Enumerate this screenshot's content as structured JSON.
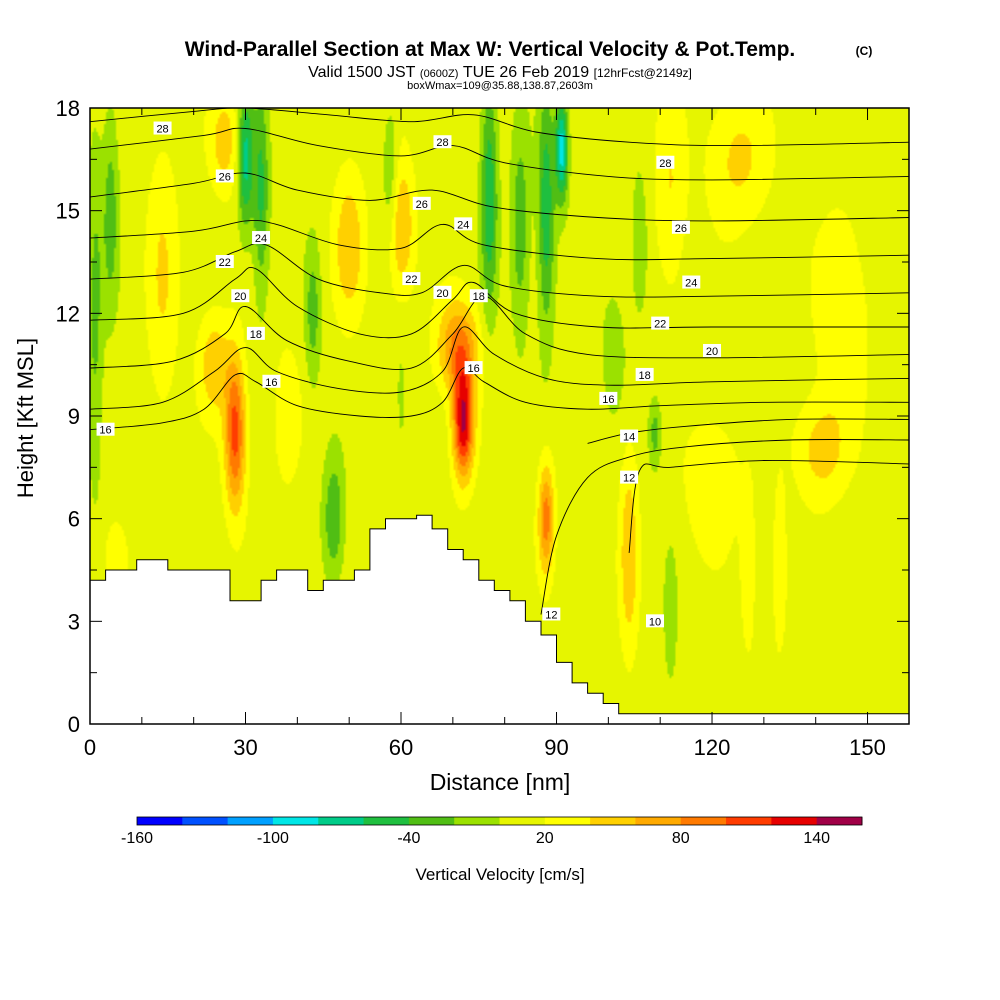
{
  "header": {
    "title": "Wind-Parallel Section at Max W: Vertical Velocity & Pot.Temp.",
    "title_badge": "(C)",
    "subtitle_valid": "Valid 1500 JST",
    "subtitle_zulu": "(0600Z)",
    "subtitle_date": "TUE 26 Feb 2019",
    "subtitle_fcst": "[12hrFcst@2149z]",
    "box_line": "boxWmax=109@35.88,138.87,2603m"
  },
  "chart_data": {
    "type": "heatmap",
    "title": "Wind-Parallel Section at Max W: Vertical Velocity & Pot.Temp.",
    "xlabel": "Distance [nm]",
    "ylabel": "Height [Kft MSL]",
    "xlim": [
      0,
      158
    ],
    "ylim": [
      0,
      18
    ],
    "x_ticks": [
      0,
      30,
      60,
      90,
      120,
      150
    ],
    "x_tick_labels": [
      "0",
      "30",
      "60",
      "90",
      "120",
      "150"
    ],
    "y_ticks": [
      0,
      3,
      6,
      9,
      12,
      15,
      18
    ],
    "y_tick_labels": [
      "0",
      "3",
      "6",
      "9",
      "12",
      "15",
      "18"
    ],
    "grid": false,
    "colorbar": {
      "label": "Vertical Velocity [cm/s]",
      "tick_labels": [
        "-160",
        "-100",
        "-40",
        "20",
        "80",
        "140"
      ],
      "tick_values": [
        -160,
        -100,
        -40,
        20,
        80,
        140
      ],
      "levels": [
        -160,
        -140,
        -120,
        -100,
        -80,
        -60,
        -40,
        -20,
        0,
        20,
        40,
        60,
        80,
        100,
        120,
        140,
        160
      ],
      "colors": [
        "#0000ff",
        "#0050ff",
        "#00a0ff",
        "#00e6e6",
        "#00cc88",
        "#1fbf3f",
        "#50be14",
        "#9be100",
        "#e6f500",
        "#ffff00",
        "#ffd000",
        "#ffaa00",
        "#ff7a00",
        "#ff3c00",
        "#e60000",
        "#a00046"
      ]
    },
    "terrain": [
      [
        0,
        4.2
      ],
      [
        3,
        4.2
      ],
      [
        3,
        4.5
      ],
      [
        9,
        4.5
      ],
      [
        9,
        4.8
      ],
      [
        15,
        4.8
      ],
      [
        15,
        4.5
      ],
      [
        27,
        4.5
      ],
      [
        27,
        3.6
      ],
      [
        33,
        3.6
      ],
      [
        33,
        4.2
      ],
      [
        36,
        4.2
      ],
      [
        36,
        4.5
      ],
      [
        42,
        4.5
      ],
      [
        42,
        3.9
      ],
      [
        45,
        3.9
      ],
      [
        45,
        4.2
      ],
      [
        51,
        4.2
      ],
      [
        51,
        4.5
      ],
      [
        54,
        4.5
      ],
      [
        54,
        5.7
      ],
      [
        57,
        5.7
      ],
      [
        57,
        6.0
      ],
      [
        63,
        6.0
      ],
      [
        63,
        6.1
      ],
      [
        66,
        6.1
      ],
      [
        66,
        5.7
      ],
      [
        69,
        5.7
      ],
      [
        69,
        5.1
      ],
      [
        72,
        5.1
      ],
      [
        72,
        4.8
      ],
      [
        75,
        4.8
      ],
      [
        75,
        4.2
      ],
      [
        78,
        4.2
      ],
      [
        78,
        3.9
      ],
      [
        81,
        3.9
      ],
      [
        81,
        3.6
      ],
      [
        84,
        3.6
      ],
      [
        84,
        3.0
      ],
      [
        87,
        3.0
      ],
      [
        87,
        2.6
      ],
      [
        90,
        2.6
      ],
      [
        90,
        1.8
      ],
      [
        93,
        1.8
      ],
      [
        93,
        1.2
      ],
      [
        96,
        1.2
      ],
      [
        96,
        0.9
      ],
      [
        99,
        0.9
      ],
      [
        99,
        0.6
      ],
      [
        102,
        0.6
      ],
      [
        102,
        0.3
      ],
      [
        158,
        0.3
      ]
    ],
    "w_features": [
      {
        "x": 28,
        "y": 8.5,
        "sx": 2.0,
        "sy": 2.2,
        "w": 100
      },
      {
        "x": 24,
        "y": 10.5,
        "sx": 3.0,
        "sy": 1.5,
        "w": 45
      },
      {
        "x": 72,
        "y": 8.8,
        "sx": 2.0,
        "sy": 1.6,
        "w": 130
      },
      {
        "x": 71,
        "y": 11.0,
        "sx": 4.0,
        "sy": 1.4,
        "w": 75
      },
      {
        "x": 88,
        "y": 6.0,
        "sx": 1.5,
        "sy": 1.6,
        "w": 80
      },
      {
        "x": 104,
        "y": 5.0,
        "sx": 1.8,
        "sy": 3.0,
        "w": 45
      },
      {
        "x": 60,
        "y": 14.5,
        "sx": 2.5,
        "sy": 2.0,
        "w": 55
      },
      {
        "x": 50,
        "y": 14.0,
        "sx": 3.0,
        "sy": 2.2,
        "w": 45
      },
      {
        "x": 26,
        "y": 17.0,
        "sx": 3.0,
        "sy": 1.5,
        "w": 40
      },
      {
        "x": 125,
        "y": 16.5,
        "sx": 6.0,
        "sy": 2.0,
        "w": 35
      },
      {
        "x": 112,
        "y": 15.5,
        "sx": 3.0,
        "sy": 3.0,
        "w": 30
      },
      {
        "x": 145,
        "y": 12.0,
        "sx": 5.0,
        "sy": 3.0,
        "w": 30
      },
      {
        "x": 141,
        "y": 8.0,
        "sx": 5.0,
        "sy": 1.5,
        "w": 40
      },
      {
        "x": 120,
        "y": 7.0,
        "sx": 5.0,
        "sy": 2.0,
        "w": 30
      },
      {
        "x": 14,
        "y": 13.0,
        "sx": 3.0,
        "sy": 4.0,
        "w": 30
      },
      {
        "x": 5,
        "y": 4.8,
        "sx": 2.5,
        "sy": 1.2,
        "w": 28
      },
      {
        "x": 127,
        "y": 4.5,
        "sx": 1.5,
        "sy": 2.5,
        "w": 25
      },
      {
        "x": 133,
        "y": 4.5,
        "sx": 1.5,
        "sy": 2.5,
        "w": 25
      },
      {
        "x": 38,
        "y": 9.0,
        "sx": 2.5,
        "sy": 2.0,
        "w": 25
      },
      {
        "x": 33,
        "y": 15.5,
        "sx": 1.5,
        "sy": 3.0,
        "w": -55
      },
      {
        "x": 30,
        "y": 16.5,
        "sx": 1.5,
        "sy": 2.0,
        "w": -80
      },
      {
        "x": 77,
        "y": 15.5,
        "sx": 1.6,
        "sy": 3.5,
        "w": -65
      },
      {
        "x": 88,
        "y": 15.0,
        "sx": 1.6,
        "sy": 3.5,
        "w": -65
      },
      {
        "x": 91,
        "y": 16.8,
        "sx": 1.2,
        "sy": 1.5,
        "w": -100
      },
      {
        "x": 83,
        "y": 14.5,
        "sx": 1.8,
        "sy": 3.0,
        "w": -45
      },
      {
        "x": 47,
        "y": 6.0,
        "sx": 2.0,
        "sy": 1.8,
        "w": -50
      },
      {
        "x": 43,
        "y": 12.0,
        "sx": 1.5,
        "sy": 2.0,
        "w": -40
      },
      {
        "x": 58,
        "y": 16.0,
        "sx": 1.5,
        "sy": 2.0,
        "w": -35
      },
      {
        "x": 4,
        "y": 15.0,
        "sx": 1.5,
        "sy": 3.0,
        "w": -40
      },
      {
        "x": 1,
        "y": 12.0,
        "sx": 1.5,
        "sy": 5.0,
        "w": -35
      },
      {
        "x": 109,
        "y": 8.5,
        "sx": 1.2,
        "sy": 1.0,
        "w": -40
      },
      {
        "x": 106,
        "y": 14.0,
        "sx": 1.5,
        "sy": 2.0,
        "w": -30
      },
      {
        "x": 101,
        "y": 11.0,
        "sx": 2.5,
        "sy": 2.0,
        "w": -20
      },
      {
        "x": 112,
        "y": 3.0,
        "sx": 1.2,
        "sy": 2.0,
        "w": -25
      },
      {
        "x": 60,
        "y": 9.5,
        "sx": 1.5,
        "sy": 2.5,
        "w": -15
      }
    ],
    "theta_contours": [
      {
        "level": 10,
        "points": [
          [
            104,
            5.0
          ],
          [
            106,
            7.4
          ],
          [
            112,
            7.5
          ],
          [
            130,
            7.7
          ],
          [
            158,
            7.6
          ]
        ]
      },
      {
        "level": 12,
        "points": [
          [
            87,
            3.2
          ],
          [
            90,
            5.5
          ],
          [
            96,
            7.2
          ],
          [
            104,
            7.8
          ],
          [
            115,
            8.1
          ],
          [
            135,
            8.3
          ],
          [
            158,
            8.3
          ]
        ]
      },
      {
        "level": 14,
        "points": [
          [
            96,
            8.2
          ],
          [
            104,
            8.5
          ],
          [
            115,
            8.7
          ],
          [
            135,
            8.9
          ],
          [
            158,
            8.9
          ]
        ]
      },
      {
        "level": 16,
        "points": [
          [
            0,
            8.6
          ],
          [
            14,
            8.8
          ],
          [
            22,
            9.2
          ],
          [
            28,
            10.2
          ],
          [
            32,
            10.0
          ],
          [
            40,
            9.3
          ],
          [
            52,
            9.0
          ],
          [
            62,
            9.0
          ],
          [
            68,
            9.4
          ],
          [
            72,
            10.4
          ],
          [
            76,
            10.0
          ],
          [
            84,
            9.4
          ],
          [
            96,
            9.2
          ],
          [
            110,
            9.3
          ],
          [
            130,
            9.4
          ],
          [
            158,
            9.4
          ]
        ]
      },
      {
        "level": 16,
        "points": [
          [
            0,
            9.2
          ],
          [
            14,
            9.4
          ],
          [
            24,
            10.3
          ],
          [
            30,
            11.0
          ],
          [
            36,
            10.3
          ],
          [
            48,
            9.8
          ],
          [
            60,
            9.7
          ],
          [
            68,
            10.3
          ],
          [
            72,
            11.6
          ],
          [
            78,
            10.8
          ],
          [
            88,
            10.1
          ],
          [
            100,
            9.9
          ],
          [
            120,
            10.0
          ],
          [
            158,
            10.1
          ]
        ]
      },
      {
        "level": 18,
        "points": [
          [
            0,
            10.4
          ],
          [
            16,
            10.6
          ],
          [
            26,
            11.4
          ],
          [
            30,
            12.2
          ],
          [
            38,
            11.2
          ],
          [
            50,
            10.6
          ],
          [
            62,
            10.4
          ],
          [
            70,
            11.4
          ],
          [
            76,
            12.5
          ],
          [
            84,
            11.4
          ],
          [
            96,
            10.8
          ],
          [
            120,
            10.7
          ],
          [
            158,
            10.8
          ]
        ]
      },
      {
        "level": 20,
        "points": [
          [
            0,
            11.8
          ],
          [
            18,
            12.0
          ],
          [
            28,
            13.0
          ],
          [
            32,
            13.3
          ],
          [
            40,
            12.2
          ],
          [
            52,
            11.4
          ],
          [
            62,
            11.4
          ],
          [
            70,
            12.4
          ],
          [
            74,
            12.9
          ],
          [
            82,
            12.0
          ],
          [
            98,
            11.6
          ],
          [
            120,
            11.6
          ],
          [
            158,
            11.6
          ]
        ]
      },
      {
        "level": 22,
        "points": [
          [
            0,
            13.0
          ],
          [
            18,
            13.2
          ],
          [
            28,
            13.8
          ],
          [
            34,
            14.0
          ],
          [
            44,
            13.0
          ],
          [
            56,
            12.6
          ],
          [
            64,
            12.6
          ],
          [
            72,
            13.4
          ],
          [
            80,
            12.8
          ],
          [
            98,
            12.5
          ],
          [
            120,
            12.5
          ],
          [
            158,
            12.6
          ]
        ]
      },
      {
        "level": 24,
        "points": [
          [
            0,
            14.2
          ],
          [
            20,
            14.4
          ],
          [
            30,
            14.7
          ],
          [
            36,
            14.6
          ],
          [
            48,
            14.0
          ],
          [
            60,
            13.9
          ],
          [
            68,
            14.6
          ],
          [
            76,
            14.0
          ],
          [
            98,
            13.6
          ],
          [
            120,
            13.6
          ],
          [
            158,
            13.7
          ]
        ]
      },
      {
        "level": 26,
        "points": [
          [
            0,
            15.4
          ],
          [
            20,
            15.8
          ],
          [
            30,
            16.1
          ],
          [
            40,
            15.6
          ],
          [
            54,
            15.3
          ],
          [
            66,
            15.6
          ],
          [
            78,
            15.1
          ],
          [
            98,
            14.8
          ],
          [
            120,
            14.7
          ],
          [
            158,
            14.8
          ]
        ]
      },
      {
        "level": 28,
        "points": [
          [
            0,
            16.8
          ],
          [
            22,
            17.2
          ],
          [
            30,
            17.4
          ],
          [
            44,
            16.9
          ],
          [
            60,
            16.6
          ],
          [
            70,
            16.9
          ],
          [
            80,
            16.4
          ],
          [
            100,
            16.0
          ],
          [
            120,
            15.9
          ],
          [
            158,
            16.0
          ]
        ]
      },
      {
        "level": 28,
        "points": [
          [
            0,
            17.6
          ],
          [
            20,
            17.9
          ],
          [
            30,
            18.0
          ],
          [
            46,
            17.8
          ],
          [
            62,
            17.6
          ],
          [
            74,
            17.8
          ],
          [
            86,
            17.3
          ],
          [
            104,
            17.0
          ],
          [
            124,
            16.9
          ],
          [
            158,
            17.0
          ]
        ]
      }
    ],
    "contour_labels": [
      {
        "text": "28",
        "x": 14,
        "y": 17.4
      },
      {
        "text": "26",
        "x": 26,
        "y": 16.0
      },
      {
        "text": "24",
        "x": 33,
        "y": 14.2
      },
      {
        "text": "22",
        "x": 26,
        "y": 13.5
      },
      {
        "text": "20",
        "x": 29,
        "y": 12.5
      },
      {
        "text": "18",
        "x": 32,
        "y": 11.4
      },
      {
        "text": "16",
        "x": 35,
        "y": 10.0
      },
      {
        "text": "16",
        "x": 3,
        "y": 8.6
      },
      {
        "text": "28",
        "x": 68,
        "y": 17.0
      },
      {
        "text": "26",
        "x": 64,
        "y": 15.2
      },
      {
        "text": "24",
        "x": 72,
        "y": 14.6
      },
      {
        "text": "22",
        "x": 62,
        "y": 13.0
      },
      {
        "text": "20",
        "x": 68,
        "y": 12.6
      },
      {
        "text": "18",
        "x": 75,
        "y": 12.5
      },
      {
        "text": "16",
        "x": 74,
        "y": 10.4
      },
      {
        "text": "28",
        "x": 111,
        "y": 16.4
      },
      {
        "text": "26",
        "x": 114,
        "y": 14.5
      },
      {
        "text": "24",
        "x": 116,
        "y": 12.9
      },
      {
        "text": "22",
        "x": 110,
        "y": 11.7
      },
      {
        "text": "20",
        "x": 120,
        "y": 10.9
      },
      {
        "text": "18",
        "x": 107,
        "y": 10.2
      },
      {
        "text": "16",
        "x": 100,
        "y": 9.5
      },
      {
        "text": "14",
        "x": 104,
        "y": 8.4
      },
      {
        "text": "12",
        "x": 104,
        "y": 7.2
      },
      {
        "text": "12",
        "x": 89,
        "y": 3.2
      },
      {
        "text": "10",
        "x": 109,
        "y": 3.0
      }
    ]
  }
}
